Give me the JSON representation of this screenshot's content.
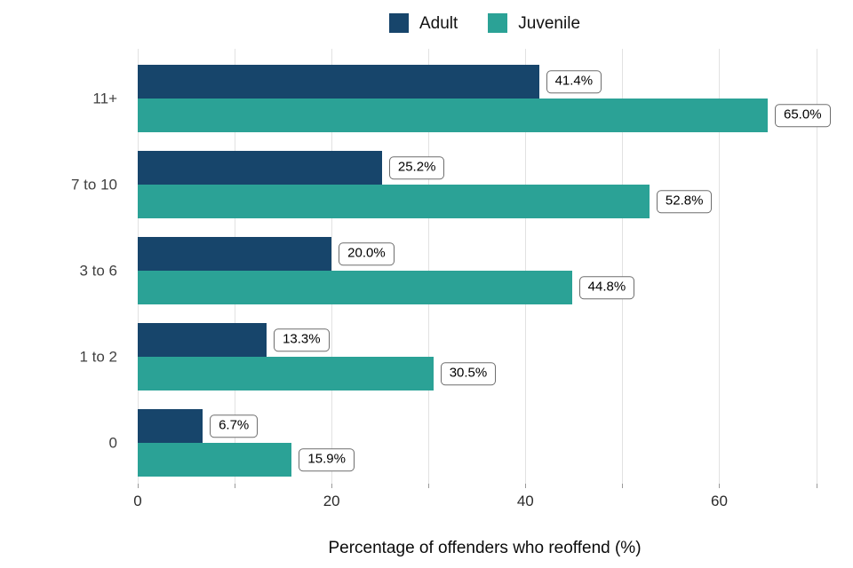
{
  "legend": {
    "items": [
      {
        "label": "Adult",
        "color": "#17456B"
      },
      {
        "label": "Juvenile",
        "color": "#2BA296"
      }
    ]
  },
  "chart_data": {
    "type": "bar",
    "orientation": "horizontal",
    "title": "",
    "xlabel": "Percentage of offenders who reoffend (%)",
    "ylabel": "",
    "categories": [
      "11+",
      "7 to 10",
      "3 to 6",
      "1 to 2",
      "0"
    ],
    "series": [
      {
        "name": "Adult",
        "color": "#17456B",
        "values": [
          41.4,
          25.2,
          20.0,
          13.3,
          6.7
        ],
        "labels": [
          "41.4%",
          "25.2%",
          "20.0%",
          "13.3%",
          "6.7%"
        ]
      },
      {
        "name": "Juvenile",
        "color": "#2BA296",
        "values": [
          65.0,
          52.8,
          44.8,
          30.5,
          15.9
        ],
        "labels": [
          "65.0%",
          "52.8%",
          "44.8%",
          "30.5%",
          "15.9%"
        ]
      }
    ],
    "xlim": [
      0,
      71.6
    ],
    "x_ticks": [
      0,
      20,
      40,
      60
    ],
    "x_tick_labels": [
      "0",
      "20",
      "40",
      "60"
    ],
    "gridlines": [
      0,
      10,
      20,
      30,
      40,
      50,
      60,
      70
    ],
    "grid": true,
    "legend_position": "top-center",
    "gridline_color": "#e2e2e2",
    "tick_color": "#999999"
  }
}
